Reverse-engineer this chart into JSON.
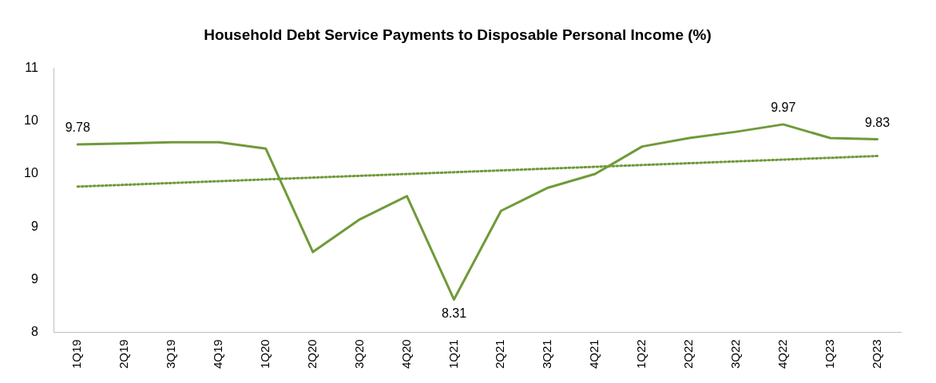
{
  "chart_data": {
    "type": "line",
    "title": "Household Debt Service Payments to Disposable Personal Income (%)",
    "categories": [
      "1Q19",
      "2Q19",
      "3Q19",
      "4Q19",
      "1Q20",
      "2Q20",
      "3Q20",
      "4Q20",
      "1Q21",
      "2Q21",
      "3Q21",
      "4Q21",
      "1Q22",
      "2Q22",
      "3Q22",
      "4Q22",
      "1Q23",
      "2Q23"
    ],
    "series": [
      {
        "color": "#6f9a3a",
        "values": [
          9.78,
          9.79,
          9.8,
          9.8,
          9.74,
          8.76,
          9.07,
          9.29,
          8.31,
          9.15,
          9.37,
          9.5,
          9.76,
          9.84,
          9.9,
          9.97,
          9.84,
          9.83
        ],
        "value_labels": [
          "9.78",
          null,
          null,
          null,
          null,
          null,
          null,
          null,
          "8.31",
          null,
          null,
          null,
          null,
          null,
          null,
          "9.97",
          null,
          "9.83"
        ]
      },
      {
        "type": "line",
        "color": "#6f9a3a",
        "line_style": "dotted",
        "x": [
          "1Q19",
          "2Q23"
        ],
        "values": [
          9.38,
          9.67
        ]
      }
    ],
    "ylim": [
      8,
      10.5
    ],
    "yticks": [
      8,
      {
        "value": 8.5,
        "label": "9"
      },
      9,
      {
        "value": 9.5,
        "label": "10"
      },
      10,
      {
        "value": 10.5,
        "label": "11"
      }
    ],
    "grid": false,
    "legend": false,
    "marker": "none",
    "line_style": "solid"
  }
}
